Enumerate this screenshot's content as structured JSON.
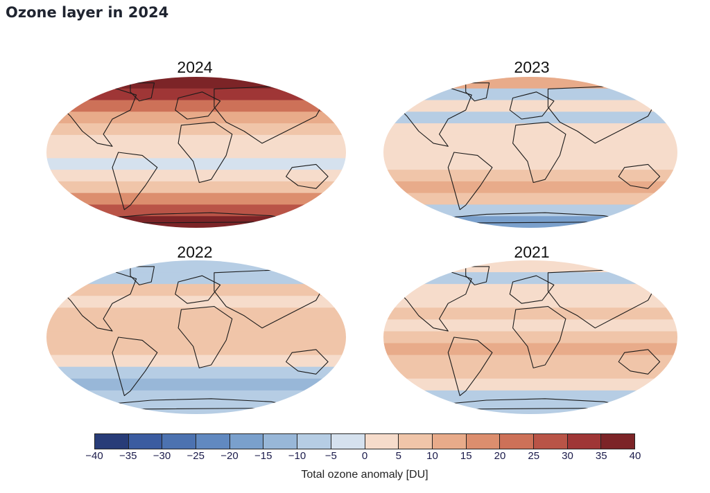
{
  "page_title": "Ozone layer in 2024",
  "maps": [
    {
      "year": "2024",
      "band_anomalies": [
        38,
        30,
        20,
        12,
        8,
        3,
        2,
        -4,
        3,
        8,
        16,
        26,
        35
      ]
    },
    {
      "year": "2023",
      "band_anomalies": [
        10,
        -8,
        3,
        -6,
        0,
        2,
        4,
        3,
        8,
        12,
        6,
        -10,
        -16
      ]
    },
    {
      "year": "2022",
      "band_anomalies": [
        -8,
        -10,
        5,
        3,
        6,
        5,
        7,
        8,
        3,
        -10,
        -14,
        -6,
        -10
      ]
    },
    {
      "year": "2021",
      "band_anomalies": [
        3,
        -6,
        4,
        2,
        7,
        3,
        8,
        10,
        8,
        6,
        4,
        -6,
        -10
      ]
    }
  ],
  "colorbar": {
    "title": "Total ozone anomaly [DU]",
    "ticks": [
      "−40",
      "−35",
      "−30",
      "−25",
      "−20",
      "−15",
      "−10",
      "−5",
      "0",
      "5",
      "10",
      "15",
      "20",
      "25",
      "30",
      "35",
      "40"
    ],
    "colors": [
      "#283c78",
      "#3b5ca0",
      "#4c72b0",
      "#6189c0",
      "#7aa0cc",
      "#98b7d8",
      "#b6cde4",
      "#d5e1ee",
      "#f6dccb",
      "#f0c5a9",
      "#e8ab8a",
      "#dc8e6e",
      "#cd7158",
      "#b95447",
      "#9f3636",
      "#7c2427"
    ]
  }
}
